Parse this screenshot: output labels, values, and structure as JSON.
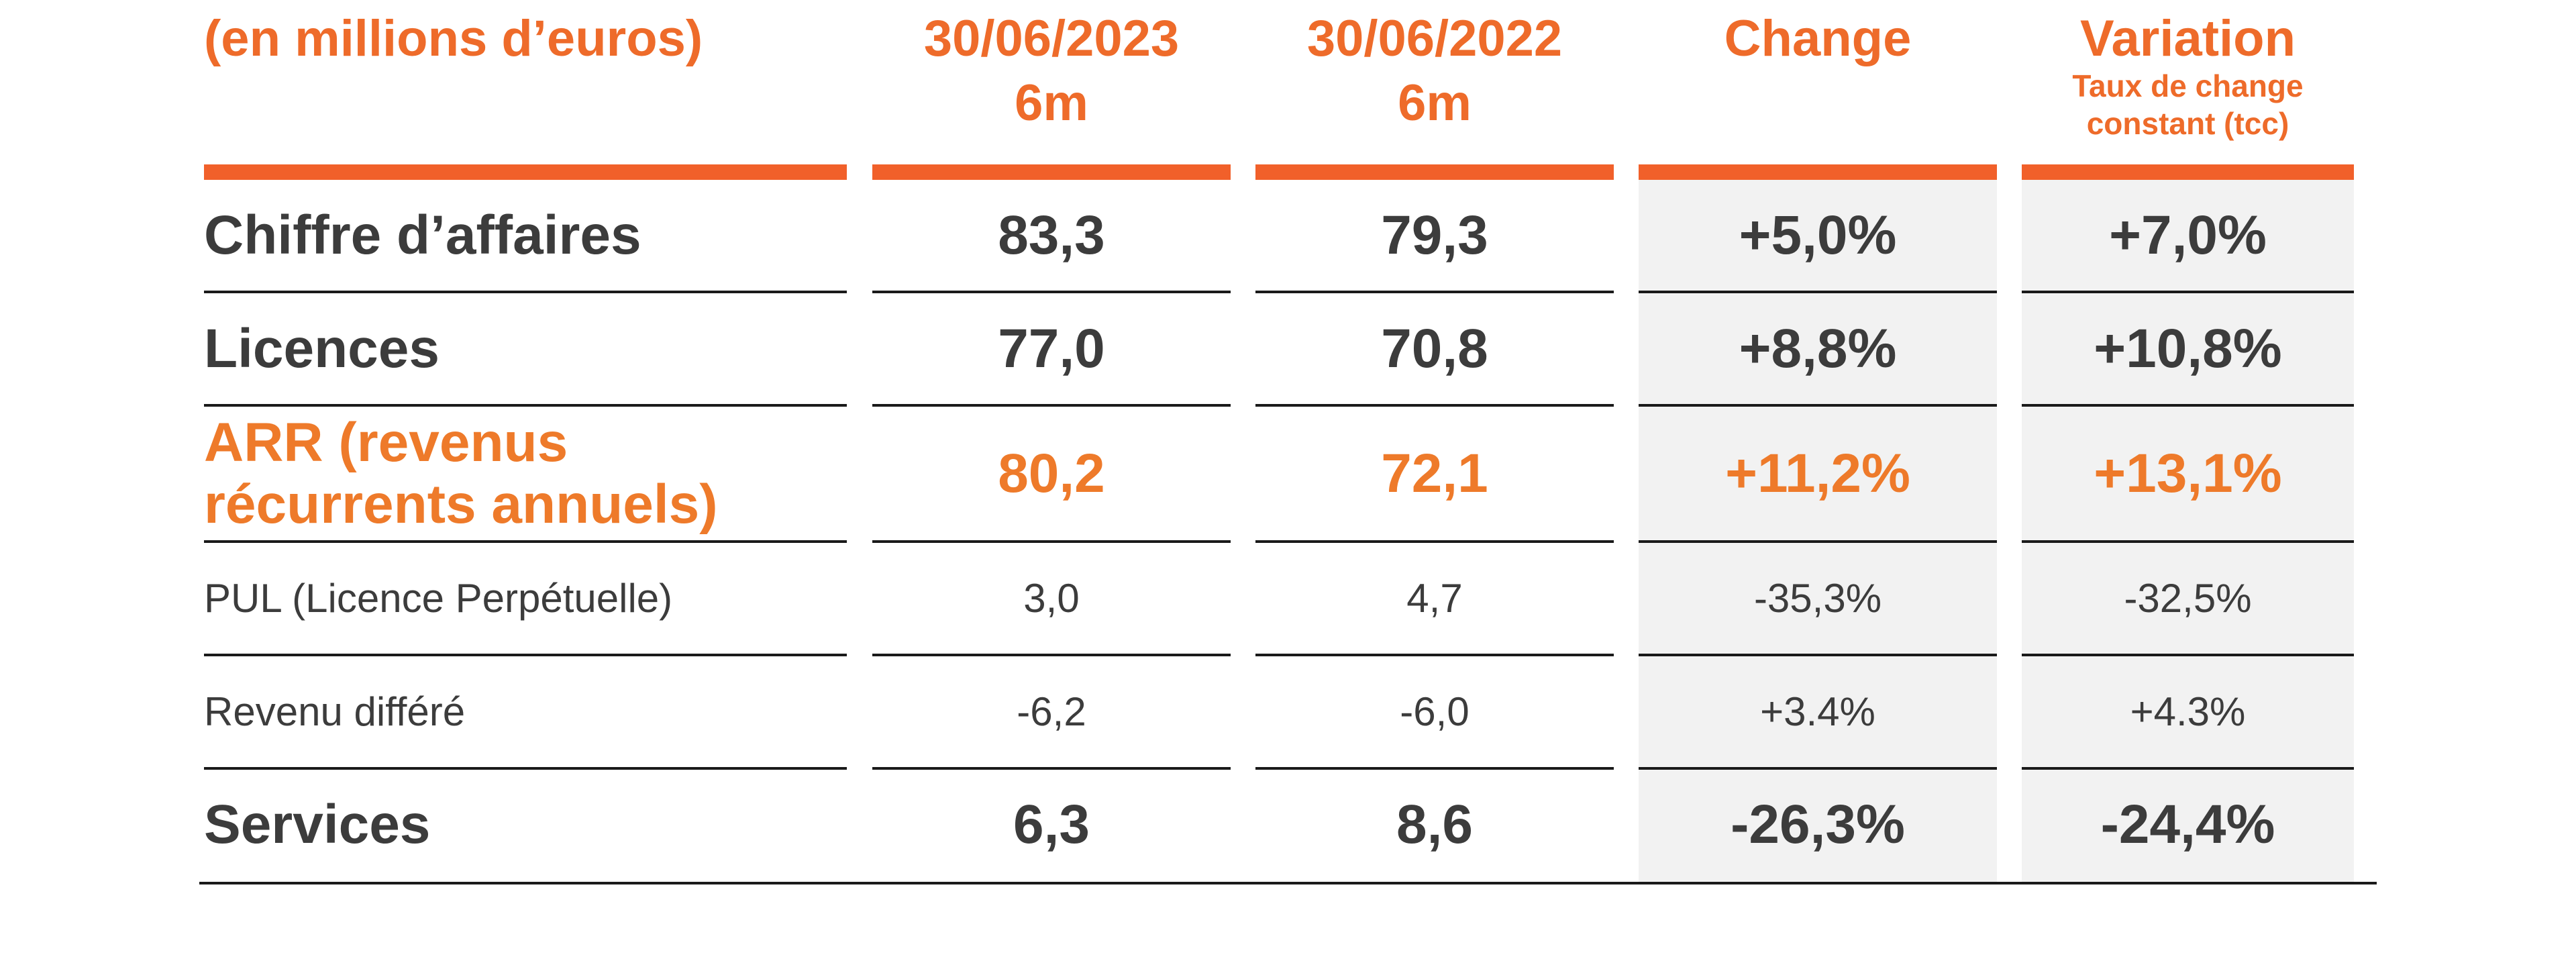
{
  "header": {
    "label": "(en millions d’euros)",
    "columns": [
      {
        "line1": "30/06/2023",
        "line2": "6m",
        "sub": ""
      },
      {
        "line1": "30/06/2022",
        "line2": "6m",
        "sub": ""
      },
      {
        "line1": "Change",
        "line2": "",
        "sub": ""
      },
      {
        "line1": "Variation",
        "line2": "",
        "sub": "Taux de change constant (tcc)"
      }
    ]
  },
  "rows": [
    {
      "label": "Chiffre d’affaires",
      "values": [
        "83,3",
        "79,3",
        "+5,0%",
        "+7,0%"
      ],
      "style": "bold"
    },
    {
      "label": "Licences",
      "values": [
        "77,0",
        "70,8",
        "+8,8%",
        "+10,8%"
      ],
      "style": "bold"
    },
    {
      "label": "ARR (revenus récurrents annuels)",
      "values": [
        "80,2",
        "72,1",
        "+11,2%",
        "+13,1%"
      ],
      "style": "highlight"
    },
    {
      "label": "PUL (Licence Perpétuelle)",
      "values": [
        "3,0",
        "4,7",
        "-35,3%",
        "-32,5%"
      ],
      "style": "normal"
    },
    {
      "label": "Revenu différé",
      "values": [
        "-6,2",
        "-6,0",
        "+3.4%",
        "+4.3%"
      ],
      "style": "normal"
    },
    {
      "label": "Services",
      "values": [
        "6,3",
        "8,6",
        "-26,3%",
        "-24,4%"
      ],
      "style": "bold"
    }
  ],
  "colors": {
    "accent": "#f1602a",
    "highlight_text": "#ee7a2a",
    "body_text": "#3c3c3c",
    "shade": "#f2f2f2"
  }
}
